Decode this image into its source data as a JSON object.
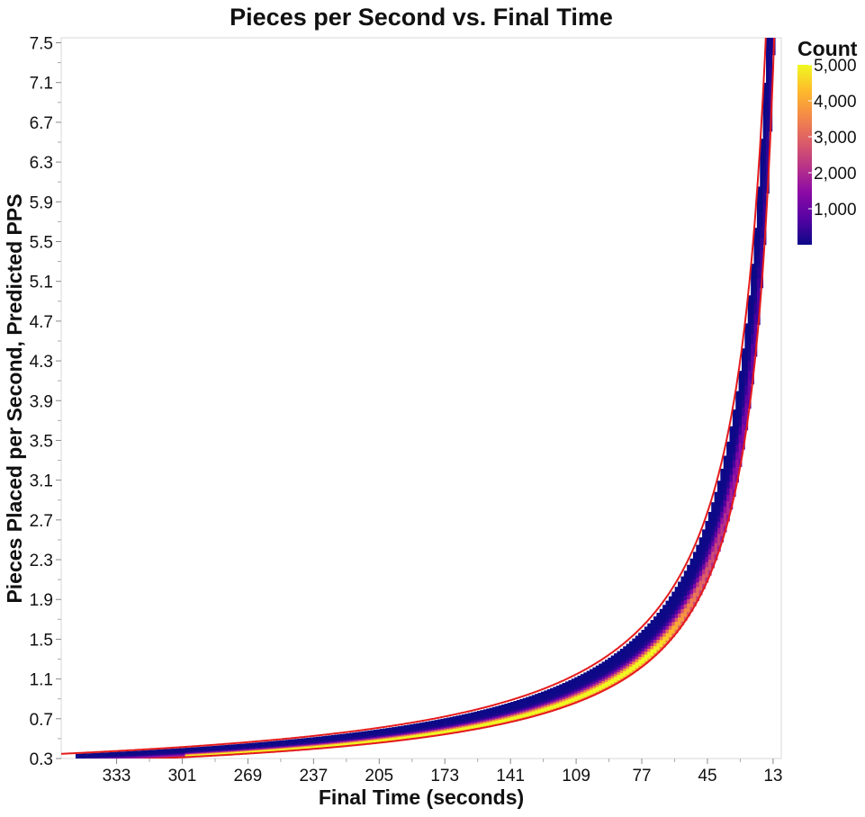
{
  "chart_data": {
    "type": "heatmap",
    "title": "Pieces per Second vs. Final Time",
    "xlabel": "Final Time (seconds)",
    "ylabel": "Pieces Placed per Second, Predicted PPS",
    "x_reversed": true,
    "xlim": [
      360,
      9
    ],
    "ylim": [
      0.3,
      7.55
    ],
    "x_ticks": [
      333,
      301,
      269,
      237,
      205,
      173,
      141,
      109,
      77,
      45,
      13
    ],
    "x_tick_labels": [
      "333",
      "301",
      "269",
      "237",
      "205",
      "173",
      "141",
      "109",
      "77",
      "45",
      "13"
    ],
    "y_ticks": [
      0.3,
      0.7,
      1.1,
      1.5,
      1.9,
      2.3,
      2.7,
      3.1,
      3.5,
      3.9,
      4.3,
      4.7,
      5.1,
      5.5,
      5.9,
      6.3,
      6.7,
      7.1,
      7.5
    ],
    "y_tick_labels": [
      "0.3",
      "0.7",
      "1.1",
      "1.5",
      "1.9",
      "2.3",
      "2.7",
      "3.1",
      "3.5",
      "3.9",
      "4.3",
      "4.7",
      "5.1",
      "5.5",
      "5.9",
      "6.3",
      "6.7",
      "7.1",
      "7.5"
    ],
    "pieces": 100,
    "density_ridge_pps_formula": "pieces / final_time",
    "density_band": {
      "low_factor": 0.94,
      "high_factor": 1.22,
      "data_x_range": [
        353,
        12
      ]
    },
    "reference_curves": [
      {
        "formula": "k / final_time",
        "k": 125,
        "color": "#e41a1c"
      },
      {
        "formula": "k / final_time",
        "k": 94,
        "color": "#e41a1c"
      }
    ],
    "colorbar": {
      "title": "Count",
      "scale": "plasma",
      "domain": [
        0,
        5000
      ],
      "ticks": [
        1000,
        2000,
        3000,
        4000,
        5000
      ],
      "tick_labels": [
        "1,000",
        "2,000",
        "3,000",
        "4,000",
        "5,000"
      ]
    },
    "grid": false,
    "legend_position": "right",
    "colors": {
      "curve": "#e41a1c",
      "cmap_low": "#0d0887",
      "cmap_mid": "#cc4778",
      "cmap_high": "#f0f921"
    }
  }
}
